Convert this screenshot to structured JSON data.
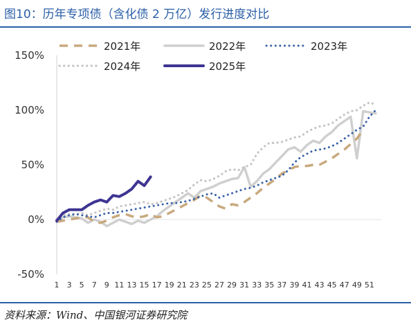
{
  "header": {
    "title": "图10：历年专项债（含化债 2 万亿）发行进度对比"
  },
  "footer": {
    "source": "资料来源：Wind、中国银河证券研究院"
  },
  "colors": {
    "s2021": "#c8a97e",
    "s2022": "#cfcfcf",
    "s2023": "#3a63a8",
    "s2024": "#c4c4c4",
    "s2025": "#3e3592",
    "rule": "#2b5fa7"
  },
  "chart_data": {
    "type": "line",
    "title": "",
    "xlabel": "",
    "ylabel": "",
    "ylim": [
      -50,
      150
    ],
    "yticks": [
      -50,
      0,
      50,
      100,
      150
    ],
    "ytick_labels": [
      "-50%",
      "0%",
      "50%",
      "100%",
      "150%"
    ],
    "xlim": [
      1,
      53
    ],
    "xticks": [
      1,
      3,
      5,
      7,
      9,
      11,
      13,
      15,
      17,
      19,
      21,
      23,
      25,
      27,
      29,
      31,
      33,
      35,
      37,
      39,
      41,
      43,
      45,
      47,
      49,
      51
    ],
    "xtick_labels": [
      "1",
      "3",
      "5",
      "7",
      "9",
      "11",
      "13",
      "15",
      "17",
      "19",
      "21",
      "23",
      "25",
      "27",
      "29",
      "31",
      "33",
      "35",
      "37",
      "39",
      "41",
      "43",
      "45",
      "47",
      "49",
      "51"
    ],
    "legend_position": "top",
    "series": [
      {
        "name": "2021年",
        "style": "dash-long",
        "x": [
          1,
          2,
          3,
          4,
          5,
          6,
          7,
          8,
          9,
          10,
          11,
          12,
          13,
          14,
          15,
          16,
          17,
          18,
          19,
          20,
          21,
          22,
          23,
          24,
          25,
          26,
          27,
          28,
          29,
          30,
          31,
          32,
          33,
          34,
          35,
          36,
          37,
          38,
          39,
          40,
          41,
          42,
          43,
          44,
          45,
          46,
          47,
          48,
          49,
          50
        ],
        "values": [
          -2,
          -1,
          0,
          1,
          2,
          2,
          -2,
          -3,
          -1,
          2,
          4,
          5,
          3,
          2,
          3,
          5,
          2,
          3,
          6,
          9,
          12,
          15,
          18,
          22,
          20,
          16,
          12,
          10,
          14,
          13,
          16,
          20,
          24,
          29,
          33,
          37,
          42,
          45,
          48,
          49,
          49,
          50,
          50,
          53,
          56,
          60,
          64,
          69,
          74,
          82
        ]
      },
      {
        "name": "2022年",
        "style": "solid-light",
        "x": [
          1,
          2,
          3,
          4,
          5,
          6,
          7,
          8,
          9,
          10,
          11,
          12,
          13,
          14,
          15,
          16,
          17,
          18,
          19,
          20,
          21,
          22,
          23,
          24,
          25,
          26,
          27,
          28,
          29,
          30,
          31,
          32,
          33,
          34,
          35,
          36,
          37,
          38,
          39,
          40,
          41,
          42,
          43,
          44,
          45,
          46,
          47,
          48,
          49,
          50,
          51,
          52
        ],
        "values": [
          0,
          2,
          3,
          2,
          1,
          -3,
          0,
          -2,
          -6,
          -3,
          0,
          -2,
          -4,
          -1,
          -3,
          0,
          3,
          8,
          12,
          16,
          20,
          24,
          20,
          26,
          28,
          30,
          33,
          35,
          37,
          38,
          48,
          30,
          35,
          42,
          46,
          52,
          58,
          64,
          66,
          62,
          68,
          72,
          70,
          76,
          80,
          86,
          90,
          94,
          56,
          99,
          98,
          97
        ]
      },
      {
        "name": "2023年",
        "style": "dotted",
        "x": [
          1,
          2,
          3,
          4,
          5,
          6,
          7,
          8,
          9,
          10,
          11,
          12,
          13,
          14,
          15,
          16,
          17,
          18,
          19,
          20,
          21,
          22,
          23,
          24,
          25,
          26,
          27,
          28,
          29,
          30,
          31,
          32,
          33,
          34,
          35,
          36,
          37,
          38,
          39,
          40,
          41,
          42,
          43,
          44,
          45,
          46,
          47,
          48,
          49,
          50,
          51,
          52
        ],
        "values": [
          -2,
          2,
          4,
          5,
          4,
          3,
          2,
          4,
          6,
          6,
          7,
          8,
          9,
          10,
          11,
          12,
          13,
          14,
          15,
          15,
          16,
          17,
          19,
          21,
          23,
          24,
          20,
          22,
          24,
          26,
          28,
          29,
          31,
          34,
          36,
          38,
          40,
          45,
          52,
          57,
          60,
          63,
          64,
          65,
          67,
          70,
          74,
          78,
          82,
          85,
          94,
          100
        ]
      },
      {
        "name": "2024年",
        "style": "dotted-light",
        "x": [
          1,
          2,
          3,
          4,
          5,
          6,
          7,
          8,
          9,
          10,
          11,
          12,
          13,
          14,
          15,
          16,
          17,
          18,
          19,
          20,
          21,
          22,
          23,
          24,
          25,
          26,
          27,
          28,
          29,
          30,
          31,
          32,
          33,
          34,
          35,
          36,
          37,
          38,
          39,
          40,
          41,
          42,
          43,
          44,
          45,
          46,
          47,
          48,
          49,
          50,
          51,
          52
        ],
        "values": [
          0,
          4,
          5,
          5,
          6,
          4,
          6,
          8,
          10,
          9,
          12,
          13,
          14,
          15,
          16,
          14,
          15,
          17,
          19,
          21,
          24,
          27,
          32,
          36,
          35,
          37,
          40,
          44,
          46,
          45,
          48,
          50,
          60,
          66,
          70,
          70,
          71,
          73,
          75,
          76,
          80,
          83,
          85,
          86,
          88,
          92,
          96,
          99,
          100,
          104,
          107,
          105
        ]
      },
      {
        "name": "2025年",
        "style": "solid-bold",
        "x": [
          1,
          2,
          3,
          4,
          5,
          6,
          7,
          8,
          9,
          10,
          11,
          12,
          13,
          14,
          15,
          16
        ],
        "values": [
          -1,
          6,
          9,
          9,
          9,
          13,
          16,
          18,
          16,
          22,
          21,
          24,
          28,
          35,
          31,
          39
        ]
      }
    ]
  }
}
